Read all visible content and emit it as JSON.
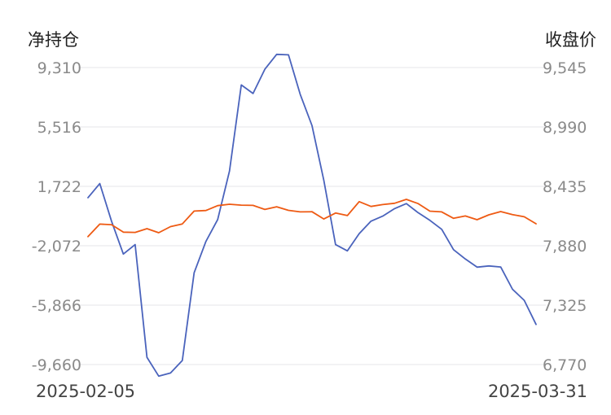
{
  "chart_data": {
    "type": "line",
    "left_axis": {
      "title": "净持仓",
      "ticks": [
        "9,310",
        "5,516",
        "1,722",
        "-2,072",
        "-5,866",
        "-9,660"
      ],
      "tick_values": [
        9310,
        5516,
        1722,
        -2072,
        -5866,
        -9660
      ],
      "range": [
        -9660,
        9310
      ]
    },
    "right_axis": {
      "title": "收盘价",
      "ticks": [
        "9,545",
        "8,990",
        "8,435",
        "7,880",
        "7,325",
        "6,770"
      ],
      "tick_values": [
        9545,
        8990,
        8435,
        7880,
        7325,
        6770
      ],
      "range": [
        6770,
        9545
      ]
    },
    "x_labels": {
      "start": "2025-02-05",
      "end": "2025-03-31"
    },
    "grid": true,
    "series": [
      {
        "axis": "left",
        "color": "#4a63bc",
        "values": [
          1000,
          1900,
          -500,
          -2600,
          -2000,
          -9200,
          -10400,
          -10200,
          -9400,
          -3800,
          -1800,
          -400,
          2700,
          8200,
          7650,
          9200,
          10150,
          10120,
          7600,
          5600,
          2100,
          -2000,
          -2400,
          -1300,
          -500,
          -180,
          300,
          620,
          40,
          -450,
          -1020,
          -2320,
          -2920,
          -3440,
          -3360,
          -3430,
          -4850,
          -5560,
          -7100
        ],
        "dates_note": ""
      },
      {
        "axis": "right",
        "color": "#ee5a13",
        "values": [
          7965,
          8082,
          8077,
          8007,
          8005,
          8040,
          8002,
          8059,
          8084,
          8204,
          8209,
          8255,
          8268,
          8259,
          8257,
          8219,
          8244,
          8211,
          8196,
          8198,
          8130,
          8186,
          8162,
          8292,
          8247,
          8265,
          8277,
          8313,
          8274,
          8203,
          8196,
          8136,
          8158,
          8123,
          8169,
          8199,
          8171,
          8151,
          8085
        ]
      }
    ]
  }
}
